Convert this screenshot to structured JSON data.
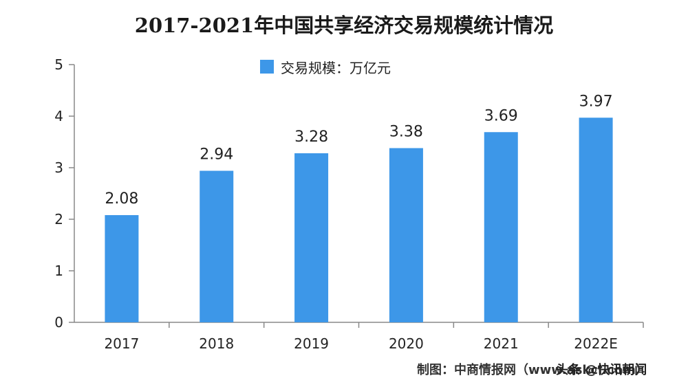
{
  "chart_data": {
    "type": "bar",
    "title": "2017-2021年中国共享经济交易规模统计情况",
    "categories": [
      "2017",
      "2018",
      "2019",
      "2020",
      "2021",
      "2022E"
    ],
    "series": [
      {
        "name": "交易规模：万亿元",
        "values": [
          2.08,
          2.94,
          3.28,
          3.38,
          3.69,
          3.97
        ]
      }
    ],
    "data_labels": [
      "2.08",
      "2.94",
      "3.28",
      "3.38",
      "3.69",
      "3.97"
    ],
    "y_ticks": [
      "0",
      "1",
      "2",
      "3",
      "4",
      "5"
    ],
    "ylim": [
      0,
      5
    ],
    "xlabel": "",
    "ylabel": "",
    "grid": false,
    "legend_position": "top-center",
    "colors": {
      "bar": "#3d97e8",
      "axis": "#888888"
    }
  },
  "source": "制图：中商情报网（www.askci.com）",
  "watermark_brand": "头条 @快讯朝闻"
}
